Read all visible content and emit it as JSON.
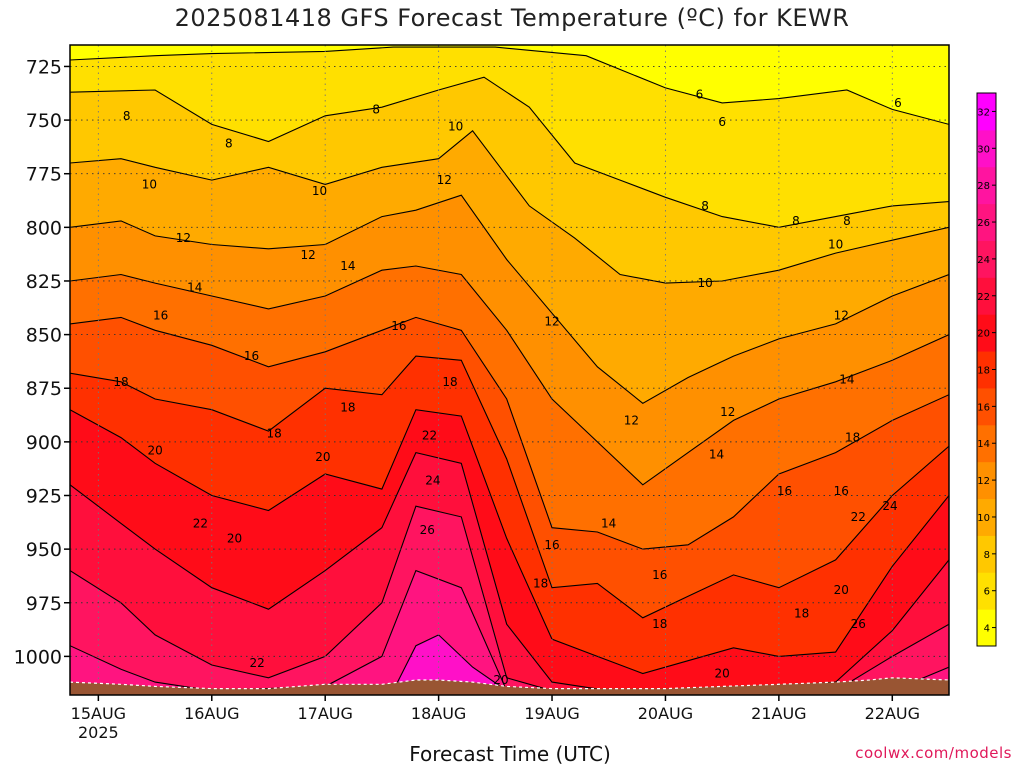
{
  "chart_data": {
    "type": "heatmap",
    "title": "2025081418 GFS Forecast Temperature (ºC) for KEWR",
    "xlabel": "Forecast Time (UTC)",
    "ylabel": "",
    "credit": "coolwx.com/models",
    "x_ticks": [
      {
        "label": "15AUG",
        "sub": "2025",
        "day": 15.0
      },
      {
        "label": "16AUG",
        "sub": "",
        "day": 16.0
      },
      {
        "label": "17AUG",
        "sub": "",
        "day": 17.0
      },
      {
        "label": "18AUG",
        "sub": "",
        "day": 18.0
      },
      {
        "label": "19AUG",
        "sub": "",
        "day": 19.0
      },
      {
        "label": "20AUG",
        "sub": "",
        "day": 20.0
      },
      {
        "label": "21AUG",
        "sub": "",
        "day": 21.0
      },
      {
        "label": "22AUG",
        "sub": "",
        "day": 22.0
      }
    ],
    "xlim": [
      14.75,
      22.5
    ],
    "y_ticks": [
      725,
      750,
      775,
      800,
      825,
      850,
      875,
      900,
      925,
      950,
      975,
      1000
    ],
    "ylim": [
      1018,
      715
    ],
    "colorbar": {
      "ticks": [
        4,
        6,
        8,
        10,
        12,
        14,
        16,
        18,
        20,
        22,
        24,
        26,
        28,
        30,
        32
      ],
      "colors": [
        "#ffff00",
        "#ffe000",
        "#ffc800",
        "#ffaa00",
        "#ff9000",
        "#ff7000",
        "#ff5000",
        "#ff3000",
        "#ff0c18",
        "#ff0f3c",
        "#ff1460",
        "#ff1480",
        "#ff14a0",
        "#ff10c8",
        "#ff00ff"
      ]
    },
    "isotherms": [
      {
        "value": 6,
        "profile": [
          [
            14.75,
            722
          ],
          [
            15.5,
            720
          ],
          [
            16.0,
            719
          ],
          [
            17.0,
            718
          ],
          [
            17.6,
            716
          ],
          [
            18.5,
            716
          ],
          [
            19.3,
            720
          ],
          [
            20.0,
            735
          ],
          [
            20.5,
            742
          ],
          [
            21.0,
            740
          ],
          [
            21.6,
            736
          ],
          [
            22.0,
            745
          ],
          [
            22.5,
            752
          ]
        ]
      },
      {
        "value": 8,
        "profile": [
          [
            14.75,
            737
          ],
          [
            15.5,
            736
          ],
          [
            16.0,
            752
          ],
          [
            16.5,
            760
          ],
          [
            17.0,
            748
          ],
          [
            17.5,
            744
          ],
          [
            18.0,
            736
          ],
          [
            18.4,
            730
          ],
          [
            18.8,
            744
          ],
          [
            19.2,
            770
          ],
          [
            19.6,
            778
          ],
          [
            20.0,
            786
          ],
          [
            20.5,
            795
          ],
          [
            21.0,
            800
          ],
          [
            21.5,
            795
          ],
          [
            22.0,
            790
          ],
          [
            22.5,
            788
          ]
        ]
      },
      {
        "value": 10,
        "profile": [
          [
            14.75,
            770
          ],
          [
            15.2,
            768
          ],
          [
            15.5,
            772
          ],
          [
            16.0,
            778
          ],
          [
            16.5,
            772
          ],
          [
            17.0,
            780
          ],
          [
            17.5,
            772
          ],
          [
            18.0,
            768
          ],
          [
            18.3,
            755
          ],
          [
            18.8,
            790
          ],
          [
            19.2,
            805
          ],
          [
            19.6,
            822
          ],
          [
            20.0,
            826
          ],
          [
            20.5,
            825
          ],
          [
            21.0,
            820
          ],
          [
            21.5,
            812
          ],
          [
            22.0,
            806
          ],
          [
            22.5,
            800
          ]
        ]
      },
      {
        "value": 12,
        "profile": [
          [
            14.75,
            800
          ],
          [
            15.2,
            797
          ],
          [
            15.5,
            804
          ],
          [
            16.0,
            808
          ],
          [
            16.5,
            810
          ],
          [
            17.0,
            808
          ],
          [
            17.5,
            795
          ],
          [
            17.8,
            792
          ],
          [
            18.2,
            785
          ],
          [
            18.6,
            815
          ],
          [
            19.0,
            840
          ],
          [
            19.4,
            865
          ],
          [
            19.8,
            882
          ],
          [
            20.2,
            870
          ],
          [
            20.6,
            860
          ],
          [
            21.0,
            852
          ],
          [
            21.5,
            845
          ],
          [
            22.0,
            832
          ],
          [
            22.5,
            822
          ]
        ]
      },
      {
        "value": 14,
        "profile": [
          [
            14.75,
            825
          ],
          [
            15.2,
            822
          ],
          [
            15.5,
            826
          ],
          [
            16.0,
            832
          ],
          [
            16.5,
            838
          ],
          [
            17.0,
            832
          ],
          [
            17.5,
            820
          ],
          [
            17.8,
            818
          ],
          [
            18.2,
            822
          ],
          [
            18.6,
            848
          ],
          [
            19.0,
            880
          ],
          [
            19.4,
            900
          ],
          [
            19.8,
            920
          ],
          [
            20.2,
            905
          ],
          [
            20.6,
            890
          ],
          [
            21.0,
            880
          ],
          [
            21.5,
            872
          ],
          [
            22.0,
            862
          ],
          [
            22.5,
            850
          ]
        ]
      },
      {
        "value": 16,
        "profile": [
          [
            14.75,
            845
          ],
          [
            15.2,
            842
          ],
          [
            15.5,
            848
          ],
          [
            16.0,
            855
          ],
          [
            16.5,
            865
          ],
          [
            17.0,
            858
          ],
          [
            17.5,
            848
          ],
          [
            17.8,
            842
          ],
          [
            18.2,
            848
          ],
          [
            18.6,
            880
          ],
          [
            19.0,
            940
          ],
          [
            19.4,
            942
          ],
          [
            19.8,
            950
          ],
          [
            20.2,
            948
          ],
          [
            20.6,
            935
          ],
          [
            21.0,
            915
          ],
          [
            21.5,
            905
          ],
          [
            22.0,
            890
          ],
          [
            22.5,
            878
          ]
        ]
      },
      {
        "value": 18,
        "profile": [
          [
            14.75,
            868
          ],
          [
            15.2,
            872
          ],
          [
            15.5,
            880
          ],
          [
            16.0,
            885
          ],
          [
            16.5,
            895
          ],
          [
            17.0,
            875
          ],
          [
            17.5,
            878
          ],
          [
            17.8,
            860
          ],
          [
            18.2,
            862
          ],
          [
            18.6,
            908
          ],
          [
            19.0,
            968
          ],
          [
            19.4,
            966
          ],
          [
            19.8,
            982
          ],
          [
            20.2,
            972
          ],
          [
            20.6,
            962
          ],
          [
            21.0,
            968
          ],
          [
            21.5,
            955
          ],
          [
            22.0,
            925
          ],
          [
            22.5,
            902
          ]
        ]
      },
      {
        "value": 20,
        "profile": [
          [
            14.75,
            885
          ],
          [
            15.2,
            898
          ],
          [
            15.5,
            910
          ],
          [
            16.0,
            925
          ],
          [
            16.5,
            932
          ],
          [
            17.0,
            915
          ],
          [
            17.5,
            922
          ],
          [
            17.8,
            885
          ],
          [
            18.2,
            888
          ],
          [
            18.6,
            945
          ],
          [
            19.0,
            992
          ],
          [
            19.4,
            1000
          ],
          [
            19.8,
            1008
          ],
          [
            20.2,
            1002
          ],
          [
            20.6,
            996
          ],
          [
            21.0,
            1000
          ],
          [
            21.5,
            998
          ],
          [
            22.0,
            958
          ],
          [
            22.5,
            925
          ]
        ]
      },
      {
        "value": 22,
        "profile": [
          [
            14.75,
            920
          ],
          [
            15.2,
            938
          ],
          [
            15.5,
            950
          ],
          [
            16.0,
            968
          ],
          [
            16.5,
            978
          ],
          [
            17.0,
            960
          ],
          [
            17.5,
            940
          ],
          [
            17.8,
            905
          ],
          [
            18.2,
            910
          ],
          [
            18.6,
            985
          ],
          [
            19.0,
            1012
          ],
          [
            19.5,
            1016
          ],
          [
            20.5,
            1016
          ],
          [
            21.5,
            1012
          ],
          [
            22.0,
            988
          ],
          [
            22.5,
            955
          ]
        ]
      },
      {
        "value": 24,
        "profile": [
          [
            14.75,
            960
          ],
          [
            15.2,
            975
          ],
          [
            15.5,
            990
          ],
          [
            16.0,
            1004
          ],
          [
            16.5,
            1010
          ],
          [
            17.0,
            1000
          ],
          [
            17.5,
            975
          ],
          [
            17.8,
            930
          ],
          [
            18.2,
            935
          ],
          [
            18.6,
            1010
          ],
          [
            19.0,
            1016
          ],
          [
            21.5,
            1016
          ],
          [
            22.0,
            1000
          ],
          [
            22.5,
            985
          ]
        ]
      },
      {
        "value": 26,
        "profile": [
          [
            14.75,
            995
          ],
          [
            15.2,
            1006
          ],
          [
            15.5,
            1012
          ],
          [
            16.0,
            1016
          ],
          [
            17.0,
            1014
          ],
          [
            17.5,
            1000
          ],
          [
            17.8,
            960
          ],
          [
            18.2,
            968
          ],
          [
            18.6,
            1016
          ],
          [
            22.0,
            1016
          ],
          [
            22.5,
            1005
          ]
        ]
      },
      {
        "value": 30,
        "profile": [
          [
            14.75,
            1016
          ],
          [
            17.6,
            1016
          ],
          [
            17.8,
            995
          ],
          [
            18.0,
            990
          ],
          [
            18.3,
            1005
          ],
          [
            18.6,
            1016
          ],
          [
            22.5,
            1016
          ]
        ]
      }
    ],
    "contour_labels": [
      {
        "text": "6",
        "day": 22.05,
        "p": 742
      },
      {
        "text": "6",
        "day": 20.3,
        "p": 738
      },
      {
        "text": "6",
        "day": 20.5,
        "p": 751
      },
      {
        "text": "8",
        "day": 15.25,
        "p": 748
      },
      {
        "text": "8",
        "day": 16.15,
        "p": 761
      },
      {
        "text": "8",
        "day": 17.45,
        "p": 745
      },
      {
        "text": "8",
        "day": 20.35,
        "p": 790
      },
      {
        "text": "8",
        "day": 21.15,
        "p": 797
      },
      {
        "text": "8",
        "day": 21.6,
        "p": 797
      },
      {
        "text": "10",
        "day": 15.45,
        "p": 780
      },
      {
        "text": "10",
        "day": 16.95,
        "p": 783
      },
      {
        "text": "10",
        "day": 18.15,
        "p": 753
      },
      {
        "text": "10",
        "day": 20.35,
        "p": 826
      },
      {
        "text": "10",
        "day": 21.5,
        "p": 808
      },
      {
        "text": "12",
        "day": 15.75,
        "p": 805
      },
      {
        "text": "12",
        "day": 16.85,
        "p": 813
      },
      {
        "text": "12",
        "day": 18.05,
        "p": 778
      },
      {
        "text": "12",
        "day": 19.0,
        "p": 844
      },
      {
        "text": "12",
        "day": 19.7,
        "p": 890
      },
      {
        "text": "12",
        "day": 20.55,
        "p": 886
      },
      {
        "text": "12",
        "day": 21.55,
        "p": 841
      },
      {
        "text": "14",
        "day": 15.85,
        "p": 828
      },
      {
        "text": "14",
        "day": 17.2,
        "p": 818
      },
      {
        "text": "14",
        "day": 19.5,
        "p": 938
      },
      {
        "text": "14",
        "day": 20.45,
        "p": 906
      },
      {
        "text": "14",
        "day": 21.6,
        "p": 871
      },
      {
        "text": "16",
        "day": 15.55,
        "p": 841
      },
      {
        "text": "16",
        "day": 16.35,
        "p": 860
      },
      {
        "text": "16",
        "day": 17.65,
        "p": 846
      },
      {
        "text": "16",
        "day": 19.0,
        "p": 948
      },
      {
        "text": "16",
        "day": 19.95,
        "p": 962
      },
      {
        "text": "16",
        "day": 21.05,
        "p": 923
      },
      {
        "text": "16",
        "day": 21.55,
        "p": 923
      },
      {
        "text": "18",
        "day": 15.2,
        "p": 872
      },
      {
        "text": "18",
        "day": 16.55,
        "p": 896
      },
      {
        "text": "18",
        "day": 17.2,
        "p": 884
      },
      {
        "text": "18",
        "day": 18.1,
        "p": 872
      },
      {
        "text": "18",
        "day": 18.9,
        "p": 966
      },
      {
        "text": "18",
        "day": 19.95,
        "p": 985
      },
      {
        "text": "18",
        "day": 21.2,
        "p": 980
      },
      {
        "text": "18",
        "day": 21.65,
        "p": 898
      },
      {
        "text": "20",
        "day": 15.5,
        "p": 904
      },
      {
        "text": "20",
        "day": 16.2,
        "p": 945
      },
      {
        "text": "20",
        "day": 16.98,
        "p": 907
      },
      {
        "text": "20",
        "day": 18.55,
        "p": 1011
      },
      {
        "text": "20",
        "day": 20.5,
        "p": 1008
      },
      {
        "text": "20",
        "day": 21.55,
        "p": 969
      },
      {
        "text": "22",
        "day": 15.9,
        "p": 938
      },
      {
        "text": "22",
        "day": 16.4,
        "p": 1003
      },
      {
        "text": "22",
        "day": 17.92,
        "p": 897
      },
      {
        "text": "22",
        "day": 21.7,
        "p": 935
      },
      {
        "text": "24",
        "day": 17.95,
        "p": 918
      },
      {
        "text": "24",
        "day": 21.98,
        "p": 930
      },
      {
        "text": "26",
        "day": 17.9,
        "p": 941
      },
      {
        "text": "26",
        "day": 21.7,
        "p": 985
      }
    ],
    "terrain": [
      [
        14.75,
        1012
      ],
      [
        15.2,
        1013
      ],
      [
        15.5,
        1014
      ],
      [
        16.0,
        1015
      ],
      [
        16.5,
        1015
      ],
      [
        17.0,
        1013
      ],
      [
        17.5,
        1013
      ],
      [
        17.8,
        1011
      ],
      [
        18.0,
        1011
      ],
      [
        18.3,
        1012
      ],
      [
        18.6,
        1014
      ],
      [
        19.0,
        1015
      ],
      [
        19.5,
        1015
      ],
      [
        20.0,
        1015
      ],
      [
        20.5,
        1014
      ],
      [
        21.0,
        1013
      ],
      [
        21.5,
        1012
      ],
      [
        21.8,
        1011
      ],
      [
        22.0,
        1010
      ],
      [
        22.5,
        1011
      ]
    ],
    "terrain_color": "#995533",
    "grid": "dotted"
  }
}
